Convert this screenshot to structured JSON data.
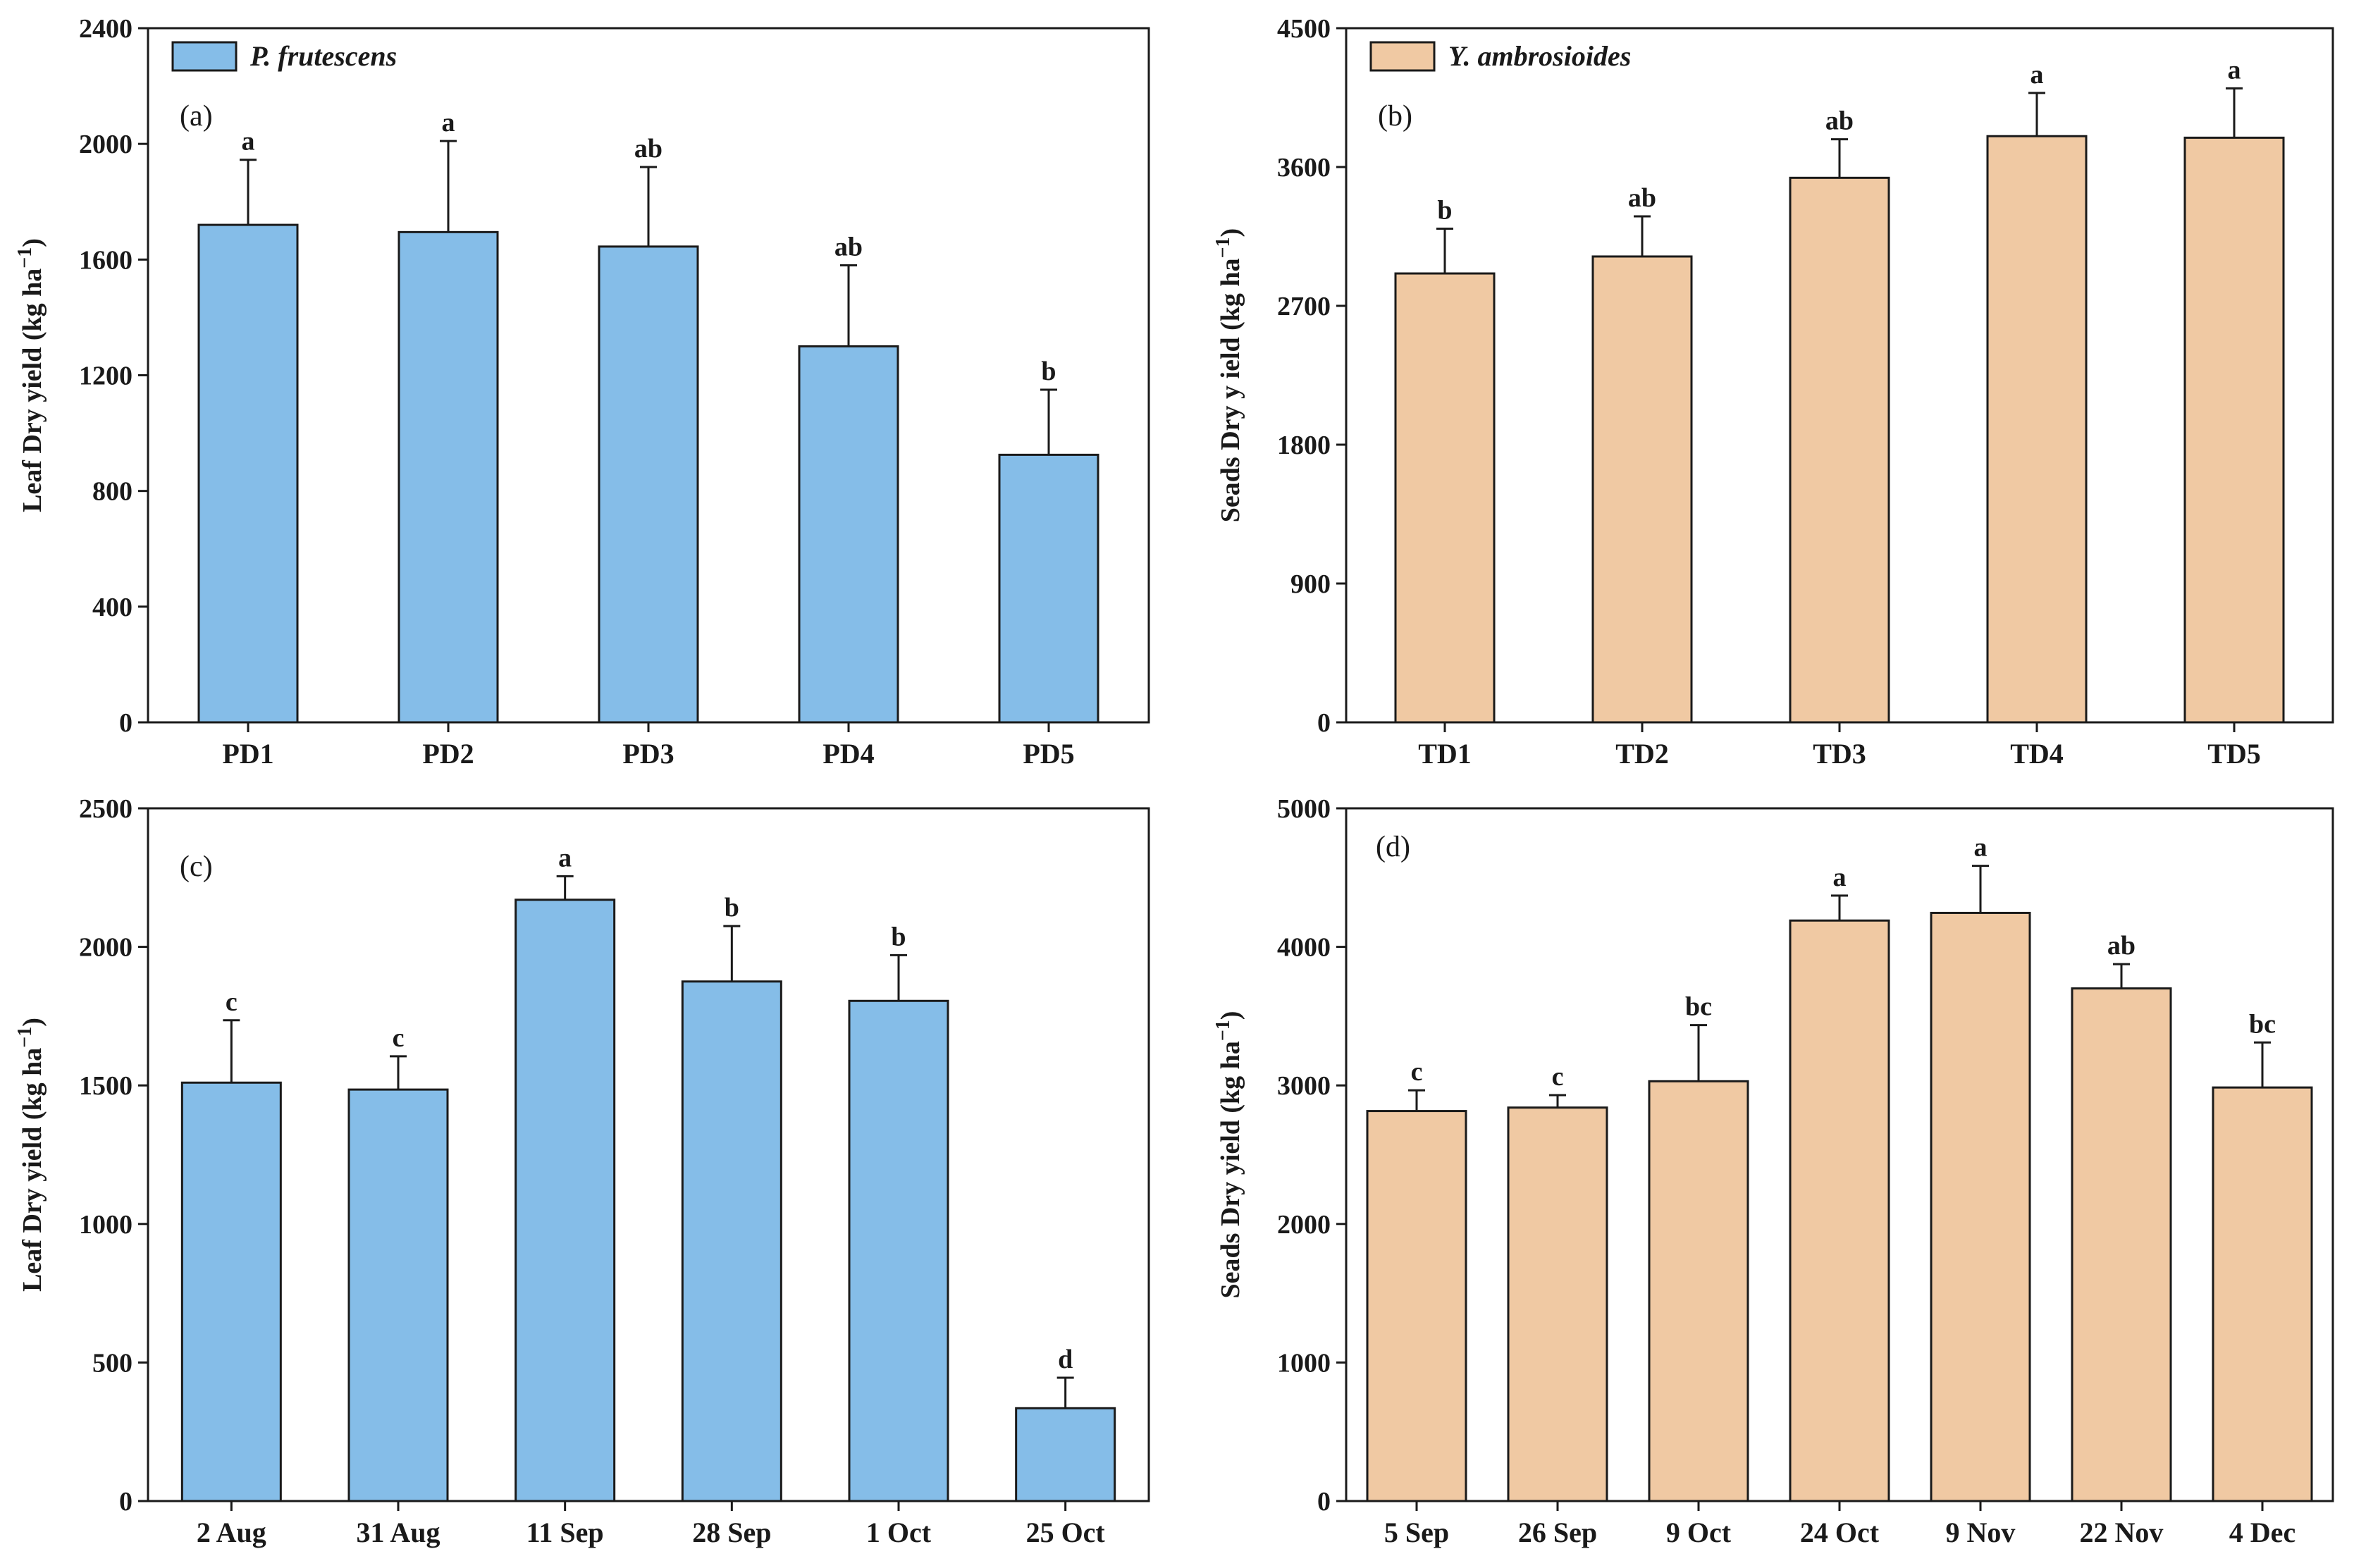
{
  "chart_data": [
    {
      "type": "bar",
      "panel_label": "(a)",
      "legend": "P. frutescens",
      "ylabel_parts": [
        "Leaf  Dry  yield (kg ha",
        "−1",
        ")"
      ],
      "xlabel": "",
      "categories": [
        "PD1",
        "PD2",
        "PD3",
        "PD4",
        "PD5"
      ],
      "values": [
        1720,
        1695,
        1645,
        1300,
        925
      ],
      "errors": [
        225,
        315,
        275,
        280,
        225
      ],
      "significance": [
        "a",
        "a",
        "ab",
        "ab",
        "b"
      ],
      "ylim": [
        0,
        2400
      ],
      "yticks": [
        0,
        400,
        800,
        1200,
        1600,
        2000,
        2400
      ],
      "color": "#85bde8"
    },
    {
      "type": "bar",
      "panel_label": "(b)",
      "legend": "Y. ambrosioides",
      "ylabel_parts": [
        "Seads  Dry y ield (kg ha",
        "−1",
        ")"
      ],
      "xlabel": "",
      "categories": [
        "TD1",
        "TD2",
        "TD3",
        "TD4",
        "TD5"
      ],
      "values": [
        2910,
        3020,
        3530,
        3800,
        3790
      ],
      "errors": [
        290,
        260,
        250,
        280,
        320
      ],
      "significance": [
        "b",
        "ab",
        "ab",
        "a",
        "a"
      ],
      "ylim": [
        0,
        4500
      ],
      "yticks": [
        0,
        900,
        1800,
        2700,
        3600,
        4500
      ],
      "color": "#f0c9a3"
    },
    {
      "type": "bar",
      "panel_label": "(c)",
      "legend": "",
      "ylabel_parts": [
        "Leaf  Dry yield (kg ha",
        "−1",
        ")"
      ],
      "xlabel": "",
      "categories": [
        "2 Aug",
        "31 Aug",
        "11 Sep",
        "28 Sep",
        "1 Oct",
        "25 Oct"
      ],
      "values": [
        1510,
        1485,
        2170,
        1875,
        1805,
        335
      ],
      "errors": [
        225,
        120,
        85,
        200,
        165,
        110
      ],
      "significance": [
        "c",
        "c",
        "a",
        "b",
        "b",
        "d"
      ],
      "ylim": [
        0,
        2500
      ],
      "yticks": [
        0,
        500,
        1000,
        1500,
        2000,
        2500
      ],
      "color": "#85bde8"
    },
    {
      "type": "bar",
      "panel_label": "(d)",
      "legend": "",
      "ylabel_parts": [
        "Seads  Dry yield (kg ha",
        "−1",
        ")"
      ],
      "xlabel": "",
      "categories": [
        "5 Sep",
        "26 Sep",
        "9 Oct",
        "24 Oct",
        "9 Nov",
        "22 Nov",
        "4 Dec"
      ],
      "values": [
        2815,
        2840,
        3030,
        4190,
        4245,
        3700,
        2985
      ],
      "errors": [
        150,
        90,
        405,
        180,
        340,
        175,
        325
      ],
      "significance": [
        "c",
        "c",
        "bc",
        "a",
        "a",
        "ab",
        "bc"
      ],
      "ylim": [
        0,
        5000
      ],
      "yticks": [
        0,
        1000,
        2000,
        3000,
        4000,
        5000
      ],
      "color": "#f0c9a3"
    }
  ]
}
